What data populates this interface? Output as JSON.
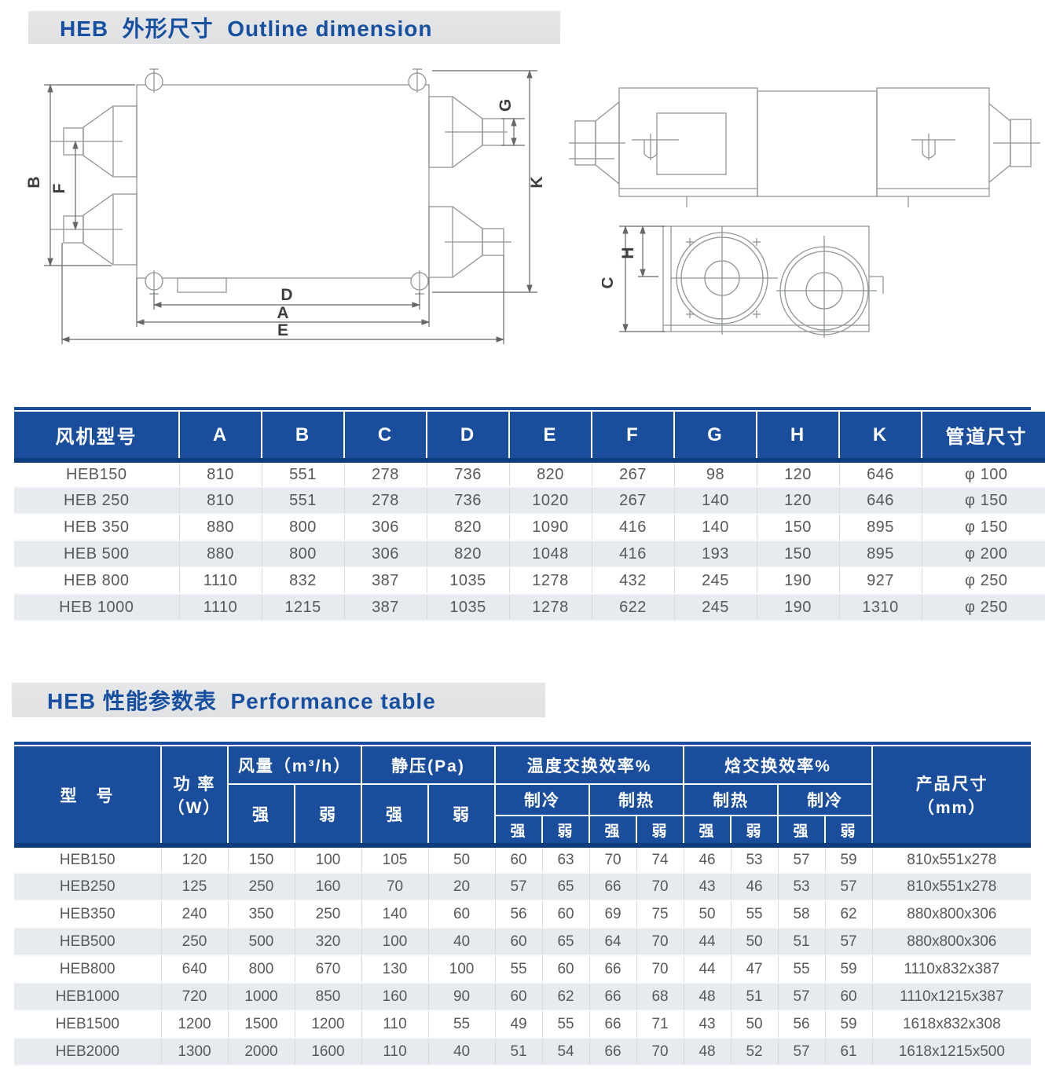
{
  "titles": {
    "outline": "HEB  外形尺寸  Outline dimension",
    "performance": "HEB 性能参数表  Performance table"
  },
  "diagrams": {
    "front": {
      "B": "B",
      "F": "F",
      "G": "G",
      "K": "K",
      "D": "D",
      "A": "A",
      "E": "E"
    },
    "end": {
      "H": "H",
      "C": "C"
    }
  },
  "dimension_table": {
    "headers": [
      "风机型号",
      "A",
      "B",
      "C",
      "D",
      "E",
      "F",
      "G",
      "H",
      "K",
      "管道尺寸"
    ],
    "rows": [
      [
        "HEB150",
        "810",
        "551",
        "278",
        "736",
        "820",
        "267",
        "98",
        "120",
        "646",
        "φ 100"
      ],
      [
        "HEB 250",
        "810",
        "551",
        "278",
        "736",
        "1020",
        "267",
        "140",
        "120",
        "646",
        "φ 150"
      ],
      [
        "HEB 350",
        "880",
        "800",
        "306",
        "820",
        "1090",
        "416",
        "140",
        "150",
        "895",
        "φ 150"
      ],
      [
        "HEB 500",
        "880",
        "800",
        "306",
        "820",
        "1048",
        "416",
        "193",
        "150",
        "895",
        "φ 200"
      ],
      [
        "HEB 800",
        "1110",
        "832",
        "387",
        "1035",
        "1278",
        "432",
        "245",
        "190",
        "927",
        "φ 250"
      ],
      [
        "HEB 1000",
        "1110",
        "1215",
        "387",
        "1035",
        "1278",
        "622",
        "245",
        "190",
        "1310",
        "φ 250"
      ]
    ]
  },
  "performance_table": {
    "header": {
      "model": "型　号",
      "power": "功 率\n（W）",
      "airflow": "风量（m³/h）",
      "static_pressure": "静压(Pa)",
      "temp_efficiency": "温度交换效率%",
      "enthalpy_efficiency": "焓交换效率%",
      "product_size": "产品尺寸\n（mm）",
      "cooling": "制冷",
      "heating": "制热",
      "strong": "强",
      "weak": "弱"
    },
    "rows": [
      [
        "HEB150",
        "120",
        "150",
        "100",
        "105",
        "50",
        "60",
        "63",
        "70",
        "74",
        "46",
        "53",
        "57",
        "59",
        "810x551x278"
      ],
      [
        "HEB250",
        "125",
        "250",
        "160",
        "70",
        "20",
        "57",
        "65",
        "66",
        "70",
        "43",
        "46",
        "53",
        "57",
        "810x551x278"
      ],
      [
        "HEB350",
        "240",
        "350",
        "250",
        "140",
        "60",
        "56",
        "60",
        "69",
        "75",
        "50",
        "55",
        "58",
        "62",
        "880x800x306"
      ],
      [
        "HEB500",
        "250",
        "500",
        "320",
        "100",
        "40",
        "60",
        "65",
        "64",
        "70",
        "44",
        "50",
        "51",
        "57",
        "880x800x306"
      ],
      [
        "HEB800",
        "640",
        "800",
        "670",
        "130",
        "100",
        "55",
        "60",
        "66",
        "70",
        "44",
        "47",
        "55",
        "59",
        "1110x832x387"
      ],
      [
        "HEB1000",
        "720",
        "1000",
        "850",
        "160",
        "90",
        "60",
        "62",
        "66",
        "68",
        "48",
        "51",
        "57",
        "60",
        "1110x1215x387"
      ],
      [
        "HEB1500",
        "1200",
        "1500",
        "1200",
        "110",
        "55",
        "49",
        "55",
        "66",
        "71",
        "43",
        "50",
        "56",
        "59",
        "1618x832x308"
      ],
      [
        "HEB2000",
        "1300",
        "2000",
        "1600",
        "110",
        "40",
        "51",
        "54",
        "66",
        "70",
        "48",
        "52",
        "57",
        "61",
        "1618x1215x500"
      ]
    ]
  }
}
